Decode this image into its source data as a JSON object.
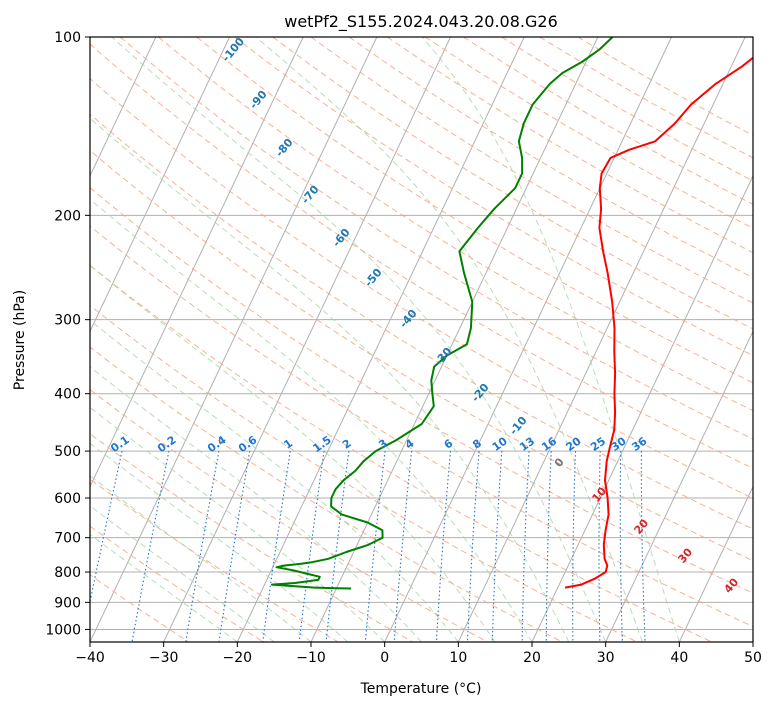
{
  "chart_data": {
    "type": "line",
    "title": "wetPf2_S155.2024.043.20.08.G26",
    "xlabel": "Temperature (°C)",
    "ylabel": "Pressure (hPa)",
    "xlim": [
      -40,
      50
    ],
    "ylim": [
      1050,
      100
    ],
    "y_scale": "log",
    "grid": true,
    "x_ticks": [
      "−40",
      "−30",
      "−20",
      "−10",
      "0",
      "10",
      "20",
      "30",
      "40",
      "50"
    ],
    "y_ticks": [
      "100",
      "200",
      "300",
      "400",
      "500",
      "600",
      "700",
      "800",
      "900",
      "1000"
    ],
    "series": [
      {
        "color": "#ff0000",
        "pressure": [
          850,
          840,
          820,
          800,
          780,
          760,
          720,
          680,
          640,
          600,
          560,
          520,
          490,
          460,
          430,
          400,
          370,
          340,
          310,
          280,
          250,
          230,
          210,
          195,
          180,
          170,
          160,
          155,
          150,
          140,
          130,
          120,
          112,
          106,
          100
        ],
        "values": [
          21,
          23,
          24.5,
          25.5,
          25.3,
          24.5,
          23.5,
          22.8,
          22.2,
          21,
          19.5,
          18.5,
          18,
          17.5,
          16.5,
          15.2,
          14,
          12.5,
          11,
          9,
          6.5,
          4.5,
          2.5,
          1.5,
          0,
          -0.7,
          -0.5,
          1.5,
          4.5,
          6,
          7,
          9,
          11.5,
          13,
          13.5
        ]
      },
      {
        "color": "#008000",
        "pressure": [
          853,
          852,
          850,
          845,
          840,
          835,
          825,
          815,
          805,
          795,
          785,
          780,
          775,
          770,
          760,
          740,
          720,
          700,
          680,
          660,
          640,
          620,
          600,
          580,
          560,
          540,
          520,
          500,
          480,
          450,
          420,
          400,
          380,
          360,
          345,
          330,
          310,
          280,
          250,
          230,
          210,
          195,
          180,
          170,
          160,
          150,
          140,
          130,
          120,
          115,
          110,
          105,
          100
        ],
        "values": [
          -8,
          -10,
          -13,
          -16,
          -19,
          -16,
          -13,
          -13,
          -15,
          -17,
          -19.5,
          -18.5,
          -16.5,
          -15,
          -13,
          -11,
          -8.5,
          -7,
          -7.5,
          -10,
          -14,
          -16,
          -16.5,
          -16.5,
          -16,
          -15,
          -14.5,
          -13.5,
          -11.5,
          -9,
          -8.5,
          -9.5,
          -10.5,
          -11,
          -10,
          -8,
          -8.5,
          -10,
          -13,
          -15,
          -14,
          -13,
          -11.5,
          -11.5,
          -12.5,
          -14,
          -14.5,
          -14.5,
          -13.5,
          -12.5,
          -10.5,
          -9,
          -8
        ]
      }
    ],
    "reference_lines": {
      "dry_adiabats_label_values": [
        "-100",
        "-90",
        "-80",
        "-70",
        "-60",
        "-50",
        "-40",
        "-30",
        "-20",
        "-10",
        "0",
        "10",
        "20",
        "30",
        "40"
      ],
      "mixing_ratio_labels": [
        "0.1",
        "0.2",
        "0.4",
        "0.6",
        "1",
        "1.5",
        "2",
        "3",
        "4",
        "6",
        "8",
        "10",
        "13",
        "16",
        "20",
        "25",
        "30",
        "36"
      ]
    }
  },
  "colors": {
    "temperature": "#ff0000",
    "dewpoint": "#008000",
    "isotherm_grid": "#b0b0b0",
    "dry_adiabat": "#f4a582",
    "moist_adiabat": "#a6d5a6",
    "mixing_ratio": "#1f77d0",
    "label_blue": "#1f77b4",
    "label_red": "#d62728",
    "label_gray": "#777777"
  }
}
